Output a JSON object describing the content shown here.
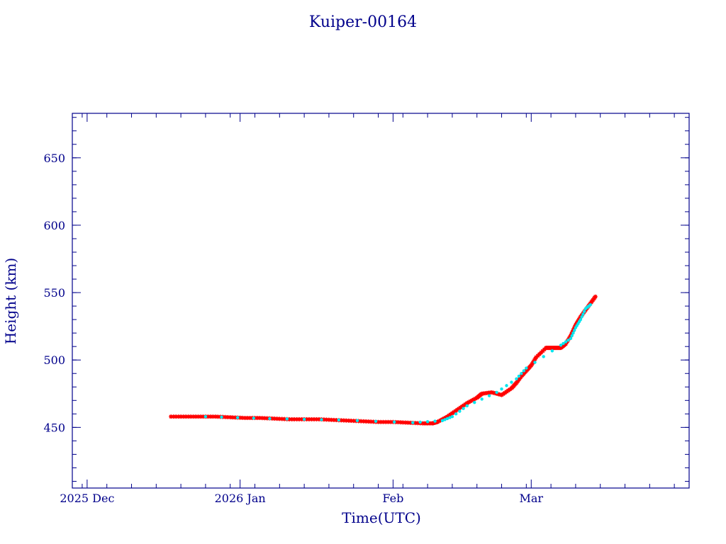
{
  "chart_data": {
    "type": "scatter",
    "title": "Kuiper-00164",
    "xlabel": "Time(UTC)",
    "ylabel": "Height (km)",
    "xlim": [
      "2025-11-28",
      "2026-04-02"
    ],
    "ylim": [
      405,
      683
    ],
    "x_ticks": [
      {
        "date": "2025-12-01",
        "label": "2025 Dec"
      },
      {
        "date": "2026-01-01",
        "label": "2026 Jan"
      },
      {
        "date": "2026-02-01",
        "label": "Feb"
      },
      {
        "date": "2026-03-01",
        "label": "Mar"
      }
    ],
    "y_ticks": [
      450,
      500,
      550,
      600,
      650
    ],
    "grid": false,
    "colors": {
      "axis": "#00008b",
      "series_primary": "#ff0000",
      "series_secondary": "#00e5ee"
    },
    "series": [
      {
        "marker": "asterisk",
        "color": "#ff0000",
        "x": [
          "2025-12-18",
          "2025-12-21",
          "2025-12-24",
          "2025-12-27",
          "2025-12-30",
          "2026-01-02",
          "2026-01-05",
          "2026-01-08",
          "2026-01-11",
          "2026-01-14",
          "2026-01-17",
          "2026-01-20",
          "2026-01-23",
          "2026-01-26",
          "2026-01-29",
          "2026-02-01",
          "2026-02-04",
          "2026-02-07",
          "2026-02-09",
          "2026-02-10",
          "2026-02-12",
          "2026-02-14",
          "2026-02-16",
          "2026-02-18",
          "2026-02-19",
          "2026-02-21",
          "2026-02-23",
          "2026-02-25",
          "2026-02-26",
          "2026-02-27",
          "2026-02-28",
          "2026-03-01",
          "2026-03-02",
          "2026-03-04",
          "2026-03-05",
          "2026-03-06",
          "2026-03-07",
          "2026-03-08",
          "2026-03-09",
          "2026-03-10",
          "2026-03-11",
          "2026-03-12",
          "2026-03-13",
          "2026-03-14"
        ],
        "y": [
          458,
          458,
          458,
          458,
          457.5,
          457,
          457,
          456.5,
          456,
          456,
          456,
          455.5,
          455,
          454.5,
          454,
          454,
          453.5,
          453,
          453,
          454,
          458,
          463,
          468,
          472,
          475,
          476,
          474,
          479,
          483,
          488,
          492,
          496,
          502,
          509,
          509,
          509,
          509,
          512,
          518,
          526,
          532,
          537,
          542,
          547
        ]
      },
      {
        "marker": "dot",
        "color": "#00e5ee",
        "x": [
          "2025-12-25",
          "2026-01-07",
          "2026-01-21",
          "2026-02-05",
          "2026-02-11",
          "2026-02-13",
          "2026-02-16",
          "2026-02-22",
          "2026-02-26",
          "2026-02-28",
          "2026-03-07",
          "2026-03-09",
          "2026-03-10",
          "2026-03-11",
          "2026-03-12",
          "2026-03-13"
        ],
        "y": [
          458,
          456.5,
          455.5,
          453.5,
          455,
          458,
          466,
          476,
          486,
          494,
          511,
          516,
          524,
          530,
          538,
          541
        ]
      }
    ]
  }
}
